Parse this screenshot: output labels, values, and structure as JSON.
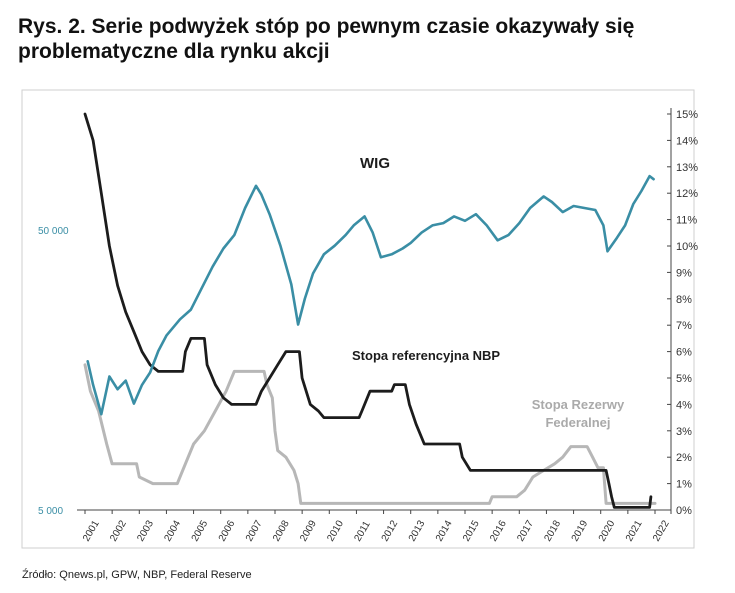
{
  "title": "Rys. 2. Serie podwyżek stóp po pewnym czasie okazywały się problematyczne dla rynku akcji",
  "source": "Źródło: Qnews.pl, GPW, NBP, Federal Reserve",
  "colors": {
    "wig": "#3a8ea5",
    "nbp": "#1c1c1c",
    "fed": "#b7b7b7",
    "left_axis_text": "#3a8ea5",
    "frame": "#cfcfcf"
  },
  "chart_data": {
    "type": "line",
    "x_ticks": [
      "2001",
      "2002",
      "2003",
      "2004",
      "2005",
      "2006",
      "2007",
      "2008",
      "2009",
      "2010",
      "2011",
      "2012",
      "2013",
      "2014",
      "2015",
      "2016",
      "2017",
      "2018",
      "2019",
      "2020",
      "2021",
      "2022"
    ],
    "xlim": [
      2001,
      2022
    ],
    "left_axis": {
      "scale": "log",
      "ticks": [
        "50 000",
        "5 000"
      ],
      "tick_values": [
        50000,
        5000
      ],
      "lim": [
        5000,
        130000
      ]
    },
    "right_axis": {
      "ticks": [
        "0%",
        "1%",
        "2%",
        "3%",
        "4%",
        "5%",
        "6%",
        "7%",
        "8%",
        "9%",
        "10%",
        "11%",
        "12%",
        "13%",
        "14%",
        "15%"
      ],
      "lim": [
        0,
        15
      ]
    },
    "series": [
      {
        "name": "WIG",
        "axis": "left",
        "points": [
          [
            2001.1,
            17000
          ],
          [
            2001.3,
            14000
          ],
          [
            2001.6,
            11000
          ],
          [
            2001.9,
            15000
          ],
          [
            2002.2,
            13500
          ],
          [
            2002.5,
            14500
          ],
          [
            2002.8,
            12000
          ],
          [
            2003.1,
            14000
          ],
          [
            2003.4,
            15500
          ],
          [
            2003.7,
            18500
          ],
          [
            2004.0,
            21000
          ],
          [
            2004.5,
            24000
          ],
          [
            2004.9,
            26000
          ],
          [
            2005.3,
            31000
          ],
          [
            2005.7,
            37000
          ],
          [
            2006.1,
            43000
          ],
          [
            2006.5,
            48000
          ],
          [
            2006.9,
            60000
          ],
          [
            2007.3,
            72000
          ],
          [
            2007.5,
            67000
          ],
          [
            2007.8,
            57000
          ],
          [
            2008.2,
            44000
          ],
          [
            2008.6,
            32000
          ],
          [
            2008.85,
            23000
          ],
          [
            2009.1,
            28500
          ],
          [
            2009.4,
            35000
          ],
          [
            2009.8,
            41000
          ],
          [
            2010.2,
            44000
          ],
          [
            2010.6,
            48000
          ],
          [
            2010.9,
            52000
          ],
          [
            2011.3,
            56000
          ],
          [
            2011.6,
            49000
          ],
          [
            2011.9,
            40000
          ],
          [
            2012.3,
            41000
          ],
          [
            2012.7,
            43000
          ],
          [
            2013.0,
            45000
          ],
          [
            2013.4,
            49000
          ],
          [
            2013.8,
            52000
          ],
          [
            2014.2,
            53000
          ],
          [
            2014.6,
            56000
          ],
          [
            2015.0,
            54000
          ],
          [
            2015.4,
            57000
          ],
          [
            2015.8,
            52000
          ],
          [
            2016.2,
            46000
          ],
          [
            2016.6,
            48000
          ],
          [
            2017.0,
            53000
          ],
          [
            2017.4,
            60000
          ],
          [
            2017.9,
            66000
          ],
          [
            2018.2,
            63000
          ],
          [
            2018.6,
            58000
          ],
          [
            2019.0,
            61000
          ],
          [
            2019.4,
            60000
          ],
          [
            2019.8,
            59000
          ],
          [
            2020.1,
            52000
          ],
          [
            2020.25,
            42000
          ],
          [
            2020.6,
            47000
          ],
          [
            2020.9,
            52000
          ],
          [
            2021.2,
            62000
          ],
          [
            2021.5,
            69000
          ],
          [
            2021.8,
            78000
          ],
          [
            2021.95,
            76000
          ]
        ]
      },
      {
        "name": "Stopa referencyjna NBP",
        "axis": "right",
        "points": [
          [
            2001.0,
            15
          ],
          [
            2001.3,
            14
          ],
          [
            2001.6,
            12
          ],
          [
            2001.9,
            10
          ],
          [
            2002.2,
            8.5
          ],
          [
            2002.5,
            7.5
          ],
          [
            2002.8,
            6.75
          ],
          [
            2003.1,
            6
          ],
          [
            2003.4,
            5.5
          ],
          [
            2003.7,
            5.25
          ],
          [
            2004.6,
            5.25
          ],
          [
            2004.7,
            6.0
          ],
          [
            2004.9,
            6.5
          ],
          [
            2005.4,
            6.5
          ],
          [
            2005.5,
            5.5
          ],
          [
            2005.8,
            4.75
          ],
          [
            2006.1,
            4.25
          ],
          [
            2006.4,
            4.0
          ],
          [
            2007.3,
            4.0
          ],
          [
            2007.5,
            4.5
          ],
          [
            2007.8,
            5.0
          ],
          [
            2008.1,
            5.5
          ],
          [
            2008.4,
            6.0
          ],
          [
            2008.9,
            6.0
          ],
          [
            2009.0,
            5.0
          ],
          [
            2009.3,
            4.0
          ],
          [
            2009.6,
            3.75
          ],
          [
            2009.8,
            3.5
          ],
          [
            2011.1,
            3.5
          ],
          [
            2011.2,
            3.75
          ],
          [
            2011.5,
            4.5
          ],
          [
            2012.3,
            4.5
          ],
          [
            2012.4,
            4.75
          ],
          [
            2012.8,
            4.75
          ],
          [
            2012.95,
            4.0
          ],
          [
            2013.2,
            3.25
          ],
          [
            2013.5,
            2.5
          ],
          [
            2014.8,
            2.5
          ],
          [
            2014.9,
            2.0
          ],
          [
            2015.2,
            1.5
          ],
          [
            2020.2,
            1.5
          ],
          [
            2020.3,
            1.0
          ],
          [
            2020.4,
            0.5
          ],
          [
            2020.5,
            0.1
          ],
          [
            2021.8,
            0.1
          ],
          [
            2021.85,
            0.5
          ]
        ]
      },
      {
        "name": "Stopa Rezerwy Federalnej",
        "axis": "right",
        "points": [
          [
            2001.0,
            5.5
          ],
          [
            2001.2,
            4.5
          ],
          [
            2001.5,
            3.75
          ],
          [
            2001.8,
            2.5
          ],
          [
            2002.0,
            1.75
          ],
          [
            2002.9,
            1.75
          ],
          [
            2003.0,
            1.25
          ],
          [
            2003.5,
            1.0
          ],
          [
            2004.4,
            1.0
          ],
          [
            2004.7,
            1.75
          ],
          [
            2005.0,
            2.5
          ],
          [
            2005.4,
            3.0
          ],
          [
            2005.8,
            3.75
          ],
          [
            2006.2,
            4.5
          ],
          [
            2006.5,
            5.25
          ],
          [
            2007.6,
            5.25
          ],
          [
            2007.7,
            4.75
          ],
          [
            2007.9,
            4.25
          ],
          [
            2008.0,
            3.0
          ],
          [
            2008.1,
            2.25
          ],
          [
            2008.4,
            2.0
          ],
          [
            2008.7,
            1.5
          ],
          [
            2008.85,
            1.0
          ],
          [
            2008.95,
            0.25
          ],
          [
            2015.9,
            0.25
          ],
          [
            2016.0,
            0.5
          ],
          [
            2016.9,
            0.5
          ],
          [
            2017.2,
            0.75
          ],
          [
            2017.5,
            1.25
          ],
          [
            2017.9,
            1.5
          ],
          [
            2018.3,
            1.75
          ],
          [
            2018.6,
            2.0
          ],
          [
            2018.9,
            2.4
          ],
          [
            2019.5,
            2.4
          ],
          [
            2019.7,
            2.0
          ],
          [
            2019.9,
            1.6
          ],
          [
            2020.1,
            1.6
          ],
          [
            2020.2,
            0.25
          ],
          [
            2022.0,
            0.25
          ]
        ]
      }
    ],
    "annotations": [
      "WIG",
      "Stopa referencyjna NBP",
      "Stopa Rezerwy\nFederalnej"
    ],
    "legend": "none",
    "grid": false
  }
}
